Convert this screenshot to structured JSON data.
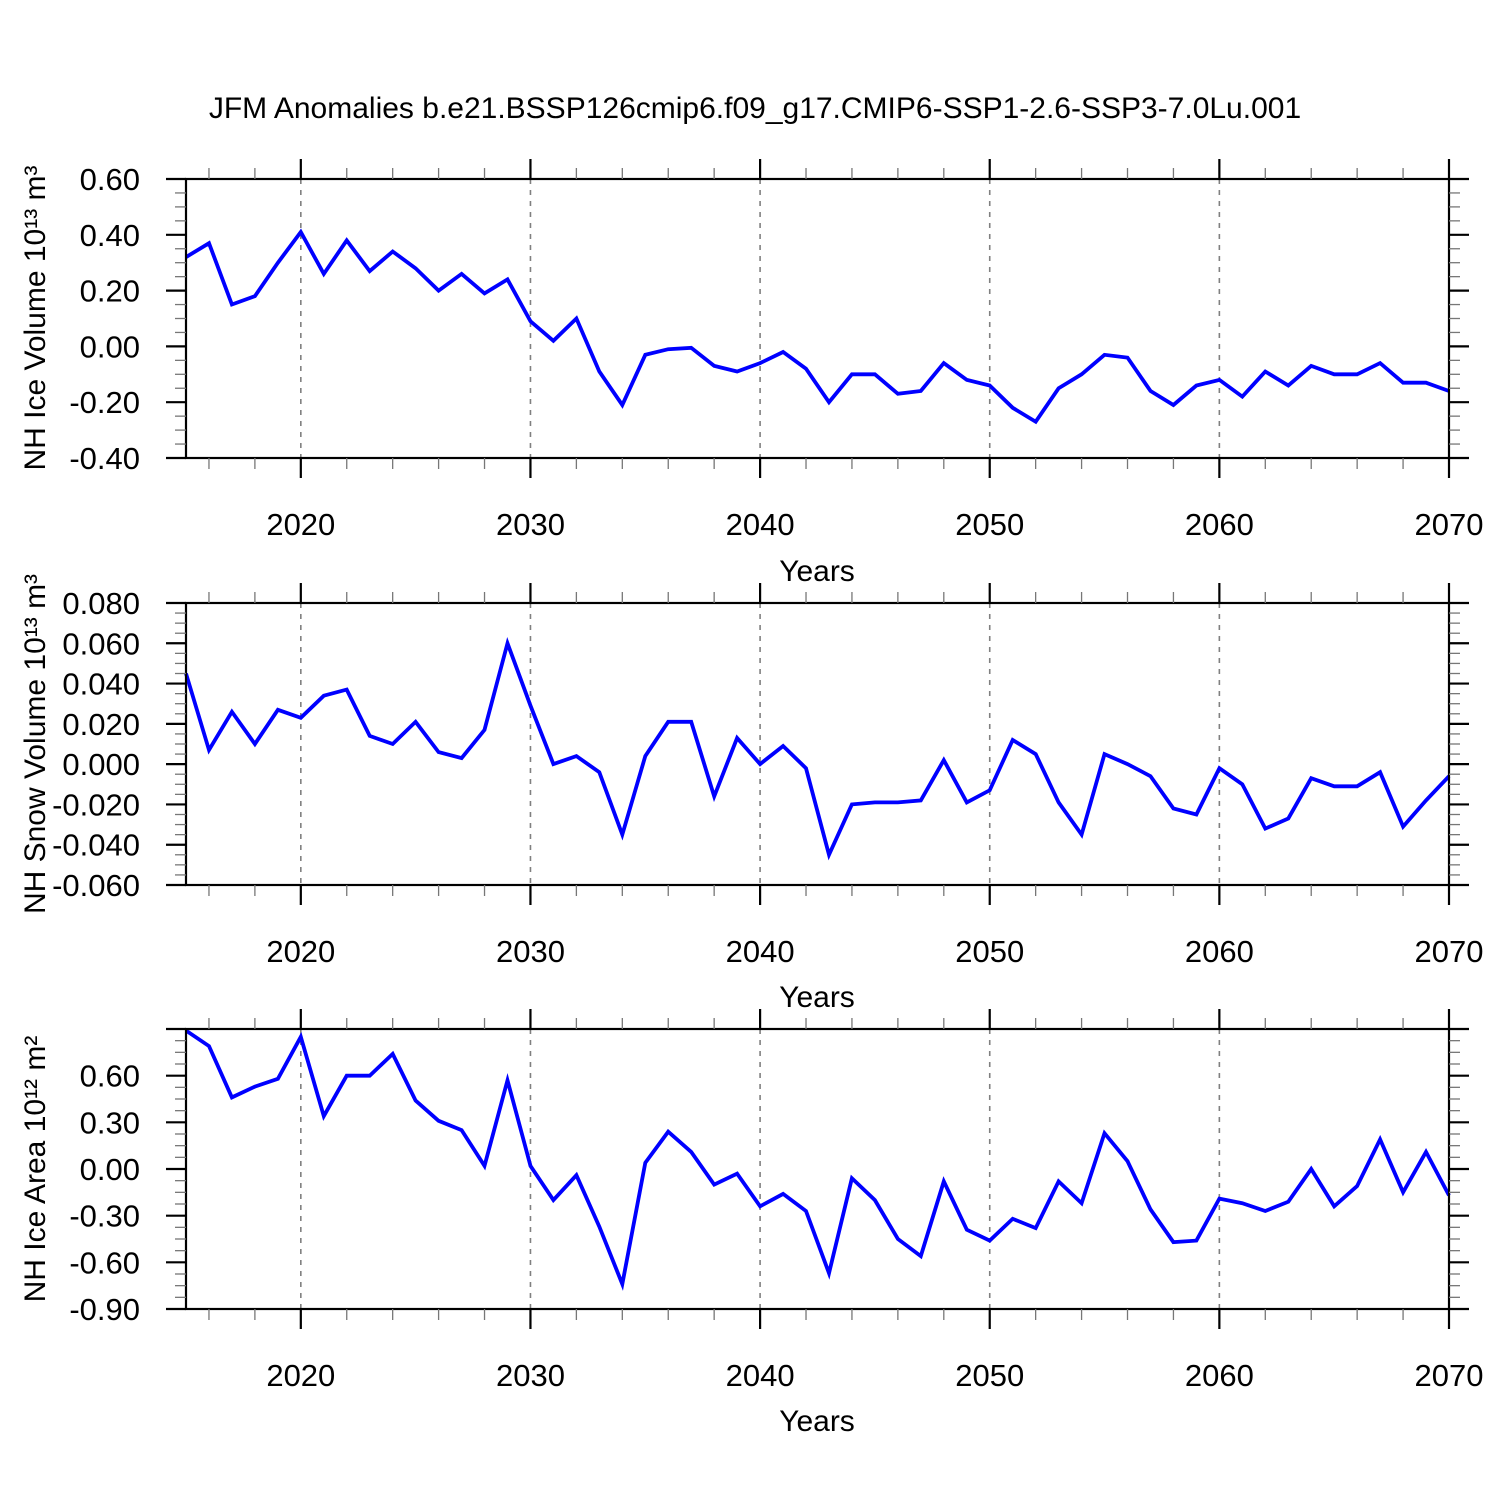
{
  "title": "JFM Anomalies b.e21.BSSP126cmip6.f09_g17.CMIP6-SSP1-2.6-SSP3-7.0Lu.001",
  "line_color": "#0000ff",
  "background_color": "#ffffff",
  "axis_color": "#000000",
  "gridline_color": "#808080",
  "chart_data": [
    {
      "type": "line",
      "title": "",
      "ylabel": "NH Ice Volume 10¹³ m³",
      "xlabel": "Years",
      "legend_position": "none",
      "grid": "vertical-dashed",
      "xlim": [
        2015,
        2070
      ],
      "ylim": [
        -0.4,
        0.6
      ],
      "xticks": [
        2020,
        2030,
        2040,
        2050,
        2060,
        2070
      ],
      "xtick_labels": [
        "2020",
        "2030",
        "2040",
        "2050",
        "2060",
        "2070"
      ],
      "x_minor_step": 2,
      "grid_x": [
        2020,
        2030,
        2040,
        2050,
        2060
      ],
      "yticks": [
        0.6,
        0.4,
        0.2,
        0.0,
        -0.2,
        -0.4
      ],
      "ytick_labels": [
        "0.60",
        "0.40",
        "0.20",
        "0.00",
        "-0.20",
        "-0.40"
      ],
      "y_minor_step": 0.05,
      "x": [
        2015,
        2016,
        2017,
        2018,
        2019,
        2020,
        2021,
        2022,
        2023,
        2024,
        2025,
        2026,
        2027,
        2028,
        2029,
        2030,
        2031,
        2032,
        2033,
        2034,
        2035,
        2036,
        2037,
        2038,
        2039,
        2040,
        2041,
        2042,
        2043,
        2044,
        2045,
        2046,
        2047,
        2048,
        2049,
        2050,
        2051,
        2052,
        2053,
        2054,
        2055,
        2056,
        2057,
        2058,
        2059,
        2060,
        2061,
        2062,
        2063,
        2064,
        2065,
        2066,
        2067,
        2068,
        2069,
        2070
      ],
      "values": [
        0.32,
        0.37,
        0.15,
        0.18,
        0.3,
        0.41,
        0.26,
        0.38,
        0.27,
        0.34,
        0.28,
        0.2,
        0.26,
        0.19,
        0.24,
        0.09,
        0.02,
        0.1,
        -0.09,
        -0.21,
        -0.03,
        -0.01,
        -0.005,
        -0.07,
        -0.09,
        -0.06,
        -0.02,
        -0.08,
        -0.2,
        -0.1,
        -0.1,
        -0.17,
        -0.16,
        -0.06,
        -0.12,
        -0.14,
        -0.22,
        -0.27,
        -0.15,
        -0.1,
        -0.03,
        -0.04,
        -0.16,
        -0.21,
        -0.14,
        -0.12,
        -0.18,
        -0.09,
        -0.14,
        -0.07,
        -0.1,
        -0.1,
        -0.06,
        -0.13,
        -0.13,
        -0.16
      ]
    },
    {
      "type": "line",
      "title": "",
      "ylabel": "NH Snow Volume 10¹³ m³",
      "xlabel": "Years",
      "legend_position": "none",
      "grid": "vertical-dashed",
      "xlim": [
        2015,
        2070
      ],
      "ylim": [
        -0.06,
        0.08
      ],
      "xticks": [
        2020,
        2030,
        2040,
        2050,
        2060,
        2070
      ],
      "xtick_labels": [
        "2020",
        "2030",
        "2040",
        "2050",
        "2060",
        "2070"
      ],
      "x_minor_step": 2,
      "grid_x": [
        2020,
        2030,
        2040,
        2050,
        2060
      ],
      "yticks": [
        0.08,
        0.06,
        0.04,
        0.02,
        0.0,
        -0.02,
        -0.04,
        -0.06
      ],
      "ytick_labels": [
        "0.080",
        "0.060",
        "0.040",
        "0.020",
        "0.000",
        "-0.020",
        "-0.040",
        "-0.060"
      ],
      "y_minor_step": 0.005,
      "x": [
        2015,
        2016,
        2017,
        2018,
        2019,
        2020,
        2021,
        2022,
        2023,
        2024,
        2025,
        2026,
        2027,
        2028,
        2029,
        2030,
        2031,
        2032,
        2033,
        2034,
        2035,
        2036,
        2037,
        2038,
        2039,
        2040,
        2041,
        2042,
        2043,
        2044,
        2045,
        2046,
        2047,
        2048,
        2049,
        2050,
        2051,
        2052,
        2053,
        2054,
        2055,
        2056,
        2057,
        2058,
        2059,
        2060,
        2061,
        2062,
        2063,
        2064,
        2065,
        2066,
        2067,
        2068,
        2069,
        2070
      ],
      "values": [
        0.045,
        0.007,
        0.026,
        0.01,
        0.027,
        0.023,
        0.034,
        0.037,
        0.014,
        0.01,
        0.021,
        0.006,
        0.003,
        0.017,
        0.06,
        0.029,
        0.0,
        0.004,
        -0.004,
        -0.035,
        0.004,
        0.021,
        0.021,
        -0.016,
        0.013,
        0.0,
        0.009,
        -0.002,
        -0.045,
        -0.02,
        -0.019,
        -0.019,
        -0.018,
        0.002,
        -0.019,
        -0.013,
        0.012,
        0.005,
        -0.019,
        -0.035,
        0.005,
        0.0,
        -0.006,
        -0.022,
        -0.025,
        -0.002,
        -0.01,
        -0.032,
        -0.027,
        -0.007,
        -0.011,
        -0.011,
        -0.004,
        -0.031,
        -0.018,
        -0.006
      ]
    },
    {
      "type": "line",
      "title": "",
      "ylabel": "NH Ice Area 10¹² m²",
      "xlabel": "Years",
      "legend_position": "none",
      "grid": "vertical-dashed",
      "xlim": [
        2015,
        2070
      ],
      "ylim": [
        -0.9,
        0.9
      ],
      "xticks": [
        2020,
        2030,
        2040,
        2050,
        2060,
        2070
      ],
      "xtick_labels": [
        "2020",
        "2030",
        "2040",
        "2050",
        "2060",
        "2070"
      ],
      "x_minor_step": 2,
      "grid_x": [
        2020,
        2030,
        2040,
        2050,
        2060
      ],
      "yticks": [
        0.9,
        0.6,
        0.3,
        0.0,
        -0.3,
        -0.6,
        -0.9
      ],
      "ytick_labels": [
        "",
        "0.60",
        "0.30",
        "0.00",
        "-0.30",
        "-0.60",
        "-0.90"
      ],
      "y_minor_step": 0.075,
      "x": [
        2015,
        2016,
        2017,
        2018,
        2019,
        2020,
        2021,
        2022,
        2023,
        2024,
        2025,
        2026,
        2027,
        2028,
        2029,
        2030,
        2031,
        2032,
        2033,
        2034,
        2035,
        2036,
        2037,
        2038,
        2039,
        2040,
        2041,
        2042,
        2043,
        2044,
        2045,
        2046,
        2047,
        2048,
        2049,
        2050,
        2051,
        2052,
        2053,
        2054,
        2055,
        2056,
        2057,
        2058,
        2059,
        2060,
        2061,
        2062,
        2063,
        2064,
        2065,
        2066,
        2067,
        2068,
        2069,
        2070
      ],
      "values": [
        0.89,
        0.79,
        0.46,
        0.53,
        0.58,
        0.85,
        0.34,
        0.6,
        0.6,
        0.74,
        0.44,
        0.31,
        0.25,
        0.02,
        0.57,
        0.02,
        -0.2,
        -0.04,
        -0.37,
        -0.74,
        0.04,
        0.24,
        0.11,
        -0.1,
        -0.03,
        -0.24,
        -0.16,
        -0.27,
        -0.67,
        -0.06,
        -0.2,
        -0.45,
        -0.56,
        -0.08,
        -0.39,
        -0.46,
        -0.32,
        -0.38,
        -0.08,
        -0.22,
        0.23,
        0.05,
        -0.26,
        -0.47,
        -0.46,
        -0.19,
        -0.22,
        -0.27,
        -0.21,
        0.0,
        -0.24,
        -0.11,
        0.19,
        -0.15,
        0.11,
        -0.17
      ]
    }
  ]
}
